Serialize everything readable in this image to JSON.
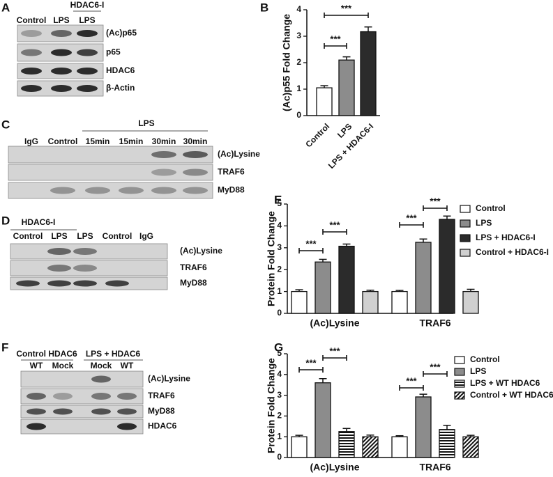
{
  "blots": {
    "A": {
      "panel_label": "A",
      "group": "HDAC6-I",
      "columns": [
        "Control",
        "LPS",
        "LPS"
      ],
      "rows": [
        "(Ac)p65",
        "p65",
        "HDAC6",
        "β-Actin"
      ]
    },
    "C": {
      "panel_label": "C",
      "group": "LPS",
      "columns": [
        "IgG",
        "Control",
        "15min",
        "15min",
        "30min",
        "30min"
      ],
      "rows": [
        "(Ac)Lysine",
        "TRAF6",
        "MyD88"
      ]
    },
    "D": {
      "panel_label": "D",
      "group": "HDAC6-I",
      "columns": [
        "Control",
        "LPS",
        "LPS",
        "Control",
        "IgG"
      ],
      "rows": [
        "(Ac)Lysine",
        "TRAF6",
        "MyD88"
      ]
    },
    "F": {
      "panel_label": "F",
      "groups": [
        "Control HDAC6",
        "LPS + HDAC6"
      ],
      "columns": [
        "WT",
        "Mock",
        "Mock",
        "WT"
      ],
      "rows": [
        "(Ac)Lysine",
        "TRAF6",
        "MyD88",
        "HDAC6"
      ]
    }
  },
  "chart_data": [
    {
      "type": "bar",
      "panel_label": "B",
      "y_label": "(Ac)p55 Fold Change",
      "categories": [
        "Control",
        "LPS",
        "LPS + HDAC6-I"
      ],
      "series": [
        {
          "values": [
            1.05,
            2.1,
            3.17
          ],
          "errors": [
            0.08,
            0.12,
            0.18
          ],
          "colors": [
            "#ffffff",
            "#8c8c8c",
            "#2b2b2b"
          ]
        }
      ],
      "ylim": [
        0,
        4
      ],
      "yticks": [
        0,
        1,
        2,
        3,
        4
      ],
      "annotations": [
        "***",
        "***"
      ]
    },
    {
      "type": "grouped-bar",
      "panel_label": "E",
      "y_label": "Protein Fold Change",
      "categories": [
        "(Ac)Lysine",
        "TRAF6"
      ],
      "series": [
        {
          "name": "Control",
          "color": "#ffffff",
          "values": [
            1.0,
            1.0
          ],
          "errors": [
            0.08,
            0.05
          ]
        },
        {
          "name": "LPS",
          "color": "#8c8c8c",
          "values": [
            2.35,
            3.25
          ],
          "errors": [
            0.12,
            0.15
          ]
        },
        {
          "name": "LPS + HDAC6-I",
          "color": "#2b2b2b",
          "values": [
            3.07,
            4.3
          ],
          "errors": [
            0.1,
            0.15
          ]
        },
        {
          "name": "Control + HDAC6-I",
          "color": "#d0d0d0",
          "values": [
            1.0,
            1.0
          ],
          "errors": [
            0.06,
            0.1
          ]
        }
      ],
      "ylim": [
        0,
        5
      ],
      "yticks": [
        0,
        1,
        2,
        3,
        4,
        5
      ],
      "annotations": [
        "***",
        "***",
        "***",
        "***"
      ]
    },
    {
      "type": "grouped-bar",
      "panel_label": "G",
      "y_label": "Protein Fold Change",
      "categories": [
        "(Ac)Lysine",
        "TRAF6"
      ],
      "series": [
        {
          "name": "Control",
          "color": "#ffffff",
          "values": [
            1.0,
            1.0
          ],
          "errors": [
            0.07,
            0.05
          ]
        },
        {
          "name": "LPS",
          "color": "#8c8c8c",
          "values": [
            3.6,
            2.92
          ],
          "errors": [
            0.2,
            0.13
          ]
        },
        {
          "name": "LPS + WT HDAC6",
          "color": "#ffffff",
          "pattern": "horizontal-stripes",
          "values": [
            1.25,
            1.35
          ],
          "errors": [
            0.15,
            0.2
          ]
        },
        {
          "name": "Control + WT HDAC6",
          "color": "#ffffff",
          "pattern": "diagonal-stripes",
          "values": [
            1.0,
            1.0
          ],
          "errors": [
            0.08,
            0.07
          ]
        }
      ],
      "ylim": [
        0,
        5
      ],
      "yticks": [
        0,
        1,
        2,
        3,
        4,
        5
      ],
      "annotations": [
        "***",
        "***",
        "***",
        "***"
      ]
    }
  ]
}
